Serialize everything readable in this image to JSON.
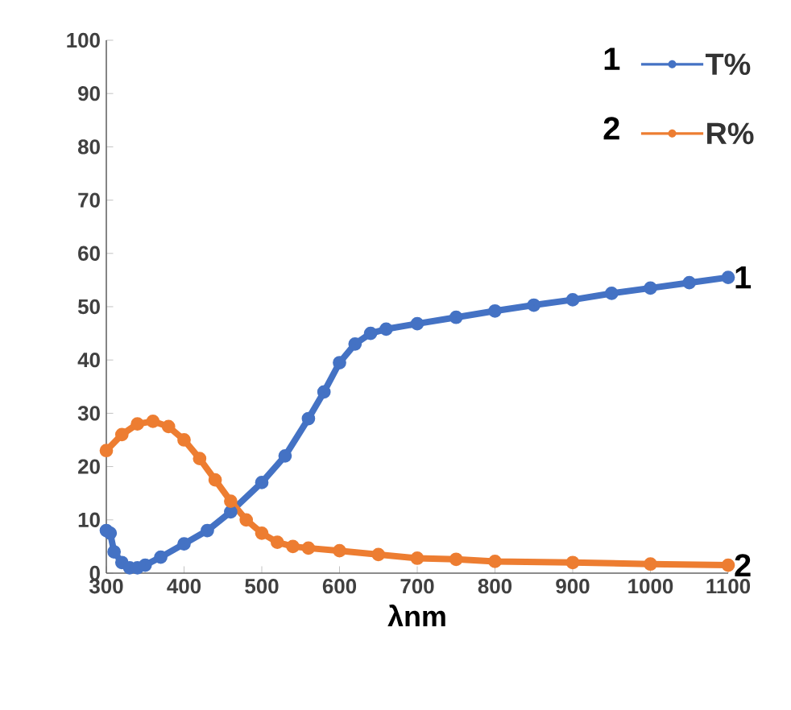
{
  "chart_data": {
    "type": "line",
    "xlabel": "λnm",
    "xlim": [
      300,
      1100
    ],
    "ylim": [
      0,
      100
    ],
    "xticks": [
      300,
      400,
      500,
      600,
      700,
      800,
      900,
      1000,
      1100
    ],
    "yticks": [
      0,
      10,
      20,
      30,
      40,
      50,
      60,
      70,
      80,
      90,
      100
    ],
    "grid": false,
    "legend": "top right",
    "marker": "circle",
    "series": [
      {
        "name": "T%",
        "color": "#4472c4",
        "x": [
          300,
          305,
          310,
          320,
          330,
          340,
          350,
          370,
          400,
          430,
          460,
          500,
          530,
          560,
          580,
          600,
          620,
          640,
          660,
          700,
          750,
          800,
          850,
          900,
          950,
          1000,
          1050,
          1100
        ],
        "values": [
          8,
          7.5,
          4,
          2,
          1,
          1,
          1.5,
          3,
          5.5,
          8,
          11.5,
          17,
          22,
          29,
          34,
          39.5,
          43,
          45,
          45.8,
          46.8,
          48,
          49.2,
          50.3,
          51.3,
          52.5,
          53.5,
          54.5,
          55.5
        ]
      },
      {
        "name": "R%",
        "color": "#ed7d31",
        "x": [
          300,
          320,
          340,
          360,
          380,
          400,
          420,
          440,
          460,
          480,
          500,
          520,
          540,
          560,
          600,
          650,
          700,
          750,
          800,
          900,
          1000,
          1100
        ],
        "values": [
          23,
          26,
          28,
          28.5,
          27.5,
          25,
          21.5,
          17.5,
          13.5,
          10,
          7.5,
          5.8,
          5,
          4.7,
          4.2,
          3.5,
          2.8,
          2.6,
          2.2,
          2,
          1.7,
          1.5
        ]
      }
    ],
    "annotations": [
      {
        "text": "1",
        "x": 1100,
        "y": 55.5
      },
      {
        "text": "2",
        "x": 1100,
        "y": 1.5
      },
      "1",
      "2"
    ]
  }
}
